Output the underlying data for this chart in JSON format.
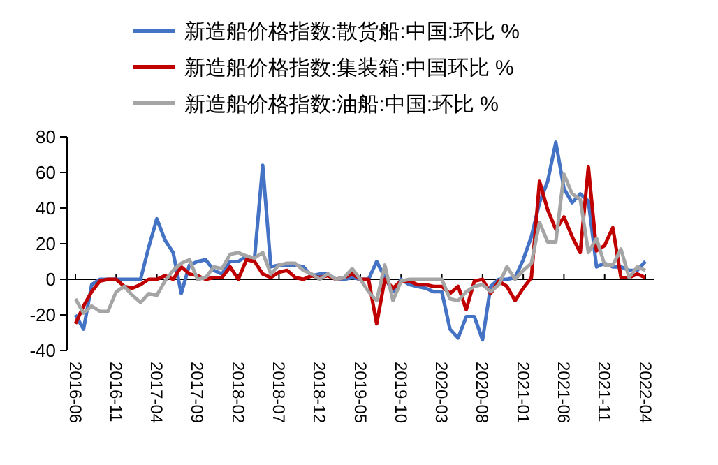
{
  "chart_data": {
    "type": "line",
    "categories": [
      "2016-06",
      null,
      null,
      null,
      null,
      "2016-11",
      null,
      null,
      null,
      null,
      "2017-04",
      null,
      null,
      null,
      null,
      "2017-09",
      null,
      null,
      null,
      null,
      "2018-02",
      null,
      null,
      null,
      null,
      "2018-07",
      null,
      null,
      null,
      null,
      "2018-12",
      null,
      null,
      null,
      null,
      "2019-05",
      null,
      null,
      null,
      null,
      "2019-10",
      null,
      null,
      null,
      null,
      "2020-03",
      null,
      null,
      null,
      null,
      "2020-08",
      null,
      null,
      null,
      null,
      "2021-01",
      null,
      null,
      null,
      null,
      "2021-06",
      null,
      null,
      null,
      null,
      "2021-11",
      null,
      null,
      null,
      null,
      "2022-04"
    ],
    "series": [
      {
        "name": "新造船价格指数:散货船:中国:环比 %",
        "color": "#4472c4",
        "values": [
          -20,
          -28,
          -3,
          0,
          0,
          0,
          0,
          0,
          0,
          18,
          34,
          22,
          15,
          -8,
          8,
          10,
          11,
          5,
          3,
          10,
          10,
          13,
          12,
          64,
          7,
          8,
          8,
          8,
          7,
          2,
          3,
          3,
          0,
          0,
          1,
          0,
          0,
          10,
          1,
          -7,
          0,
          -3,
          -4,
          -5,
          -7,
          -7,
          -28,
          -33,
          -21,
          -21,
          -34,
          -4,
          0,
          0,
          1,
          11,
          24,
          43,
          55,
          77,
          51,
          43,
          48,
          44,
          7,
          9,
          7,
          7,
          5,
          5,
          10
        ]
      },
      {
        "name": "新造船价格指数:集装箱:中国环比 %",
        "color": "#c00000",
        "values": [
          -25,
          -15,
          -7,
          -1,
          0,
          0,
          -4,
          -5,
          -3,
          0,
          0,
          2,
          0,
          7,
          3,
          2,
          0,
          1,
          1,
          7,
          0,
          11,
          10,
          3,
          1,
          4,
          5,
          1,
          0,
          2,
          1,
          2,
          0,
          1,
          3,
          0,
          0,
          -25,
          0,
          -5,
          -1,
          -1,
          -3,
          -3,
          -4,
          -4,
          -8,
          -4,
          -17,
          -1,
          0,
          -8,
          -1,
          -4,
          -12,
          -5,
          1,
          55,
          39,
          28,
          35,
          24,
          15,
          63,
          16,
          19,
          29,
          1,
          1,
          3,
          1
        ]
      },
      {
        "name": "新造船价格指数:油船:中国:环比 %",
        "color": "#a5a5a5",
        "values": [
          -11,
          -19,
          -15,
          -18,
          -18,
          -7,
          -4,
          -9,
          -13,
          -8,
          -9,
          -1,
          5,
          9,
          11,
          0,
          1,
          7,
          6,
          14,
          15,
          13,
          12,
          15,
          3,
          8,
          9,
          9,
          5,
          3,
          0,
          3,
          0,
          1,
          6,
          0,
          -7,
          -12,
          8,
          -12,
          -1,
          0,
          0,
          0,
          0,
          0,
          -11,
          -12,
          -7,
          -4,
          -3,
          -7,
          -3,
          7,
          0,
          5,
          9,
          32,
          21,
          21,
          59,
          48,
          45,
          15,
          23,
          8,
          8,
          17,
          1,
          7,
          5
        ]
      }
    ],
    "ylim": [
      -40,
      80
    ],
    "yticks": [
      -40,
      -20,
      0,
      20,
      40,
      60,
      80
    ],
    "legend": "top",
    "line_style": "solid",
    "marker": "none"
  }
}
